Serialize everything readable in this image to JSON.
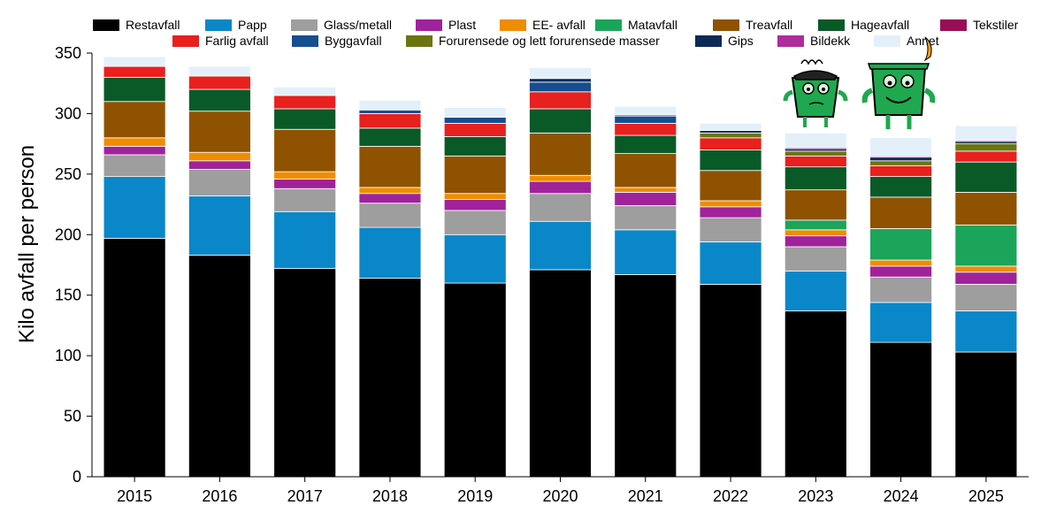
{
  "chart_data": {
    "type": "bar",
    "stacked": true,
    "title": "",
    "xlabel": "",
    "ylabel": "Kilo avfall per person",
    "ylim": [
      0,
      350
    ],
    "yticks": [
      0,
      50,
      100,
      150,
      200,
      250,
      300,
      350
    ],
    "grid": false,
    "legend_position": "top",
    "categories": [
      "2015",
      "2016",
      "2017",
      "2018",
      "2019",
      "2020",
      "2021",
      "2022",
      "2023",
      "2024",
      "2025"
    ],
    "series": [
      {
        "name": "Restavfall",
        "color": "#000000",
        "values": [
          197,
          183,
          172,
          164,
          160,
          171,
          167,
          159,
          137,
          111,
          103
        ]
      },
      {
        "name": "Papp",
        "color": "#0a87c8",
        "values": [
          51,
          49,
          47,
          42,
          40,
          40,
          37,
          35,
          33,
          33,
          34
        ]
      },
      {
        "name": "Glass/metall",
        "color": "#9e9e9e",
        "values": [
          18,
          22,
          19,
          20,
          20,
          23,
          20,
          20,
          20,
          21,
          22
        ]
      },
      {
        "name": "Plast",
        "color": "#a0229a",
        "values": [
          7,
          7,
          8,
          8,
          9,
          10,
          11,
          9,
          9,
          9,
          10
        ]
      },
      {
        "name": "EE- avfall",
        "color": "#f08c00",
        "values": [
          7,
          7,
          6,
          5,
          5,
          5,
          4,
          5,
          5,
          5,
          5
        ]
      },
      {
        "name": "Matavfall",
        "color": "#1aa55a",
        "values": [
          0,
          0,
          0,
          0,
          0,
          0,
          0,
          0,
          8,
          26,
          34
        ]
      },
      {
        "name": "Treavfall",
        "color": "#8f5200",
        "values": [
          30,
          34,
          35,
          34,
          31,
          35,
          28,
          25,
          25,
          26,
          27
        ]
      },
      {
        "name": "Hageavfall",
        "color": "#0a5a28",
        "values": [
          20,
          18,
          17,
          15,
          16,
          20,
          15,
          17,
          19,
          17,
          25
        ]
      },
      {
        "name": "Tekstiler",
        "color": "#9a0d55",
        "values": [
          0,
          0,
          0,
          0,
          0,
          0,
          0,
          0,
          0,
          0,
          0
        ]
      },
      {
        "name": "Farlig avfall",
        "color": "#e8201e",
        "values": [
          9,
          11,
          11,
          12,
          11,
          14,
          10,
          10,
          9,
          9,
          9
        ]
      },
      {
        "name": "Byggavfall",
        "color": "#164e90",
        "values": [
          0,
          0,
          0,
          3,
          5,
          8,
          6,
          0,
          0,
          0,
          0
        ]
      },
      {
        "name": "Forurensede og lett forurensede masser",
        "color": "#6b7510",
        "values": [
          0,
          0,
          0,
          0,
          0,
          0,
          0,
          4,
          4,
          4,
          6
        ]
      },
      {
        "name": "Gips",
        "color": "#0a2a55",
        "values": [
          0,
          0,
          0,
          0,
          0,
          3,
          1,
          2,
          2,
          3,
          2
        ]
      },
      {
        "name": "Bildekk",
        "color": "#b02b9c",
        "values": [
          0,
          0,
          0,
          0,
          0,
          0,
          0,
          0,
          1,
          1,
          1
        ]
      },
      {
        "name": "Annet",
        "color": "#e3f0fa",
        "values": [
          8,
          8,
          7,
          8,
          8,
          9,
          7,
          6,
          12,
          15,
          12
        ]
      }
    ]
  }
}
